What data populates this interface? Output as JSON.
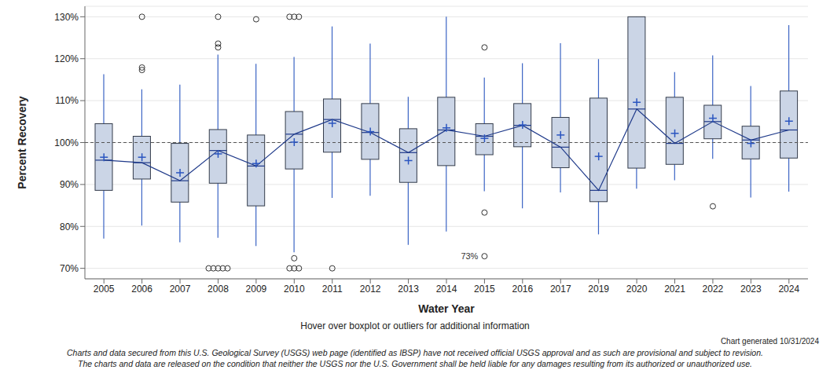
{
  "chart_data": {
    "type": "boxplot",
    "y_label": "Percent Recovery",
    "x_label": "Water Year",
    "note": "Hover over boxplot or outliers for additional information",
    "generated": "Chart generated 10/31/2024",
    "disclaimer": [
      "Charts and data secured from this U.S. Geological Survey (USGS) web page (identified as IBSP) have not received official USGS approval and as such are provisional and subject to revision.",
      "The charts and data are released on the condition that neither the USGS nor the U.S. Government shall be held liable for any damages resulting from its authorized or unauthorized use."
    ],
    "categories": [
      "2005",
      "2006",
      "2007",
      "2008",
      "2009",
      "2010",
      "2011",
      "2012",
      "2013",
      "2014",
      "2015",
      "2016",
      "2017",
      "2019",
      "2020",
      "2021",
      "2022",
      "2023",
      "2024"
    ],
    "whisker_low": [
      77.1,
      80.2,
      76.2,
      77.3,
      75.3,
      73.8,
      86.8,
      87.3,
      75.6,
      78.8,
      88.4,
      84.3,
      88.1,
      78.1,
      89,
      91,
      96.1,
      86.9,
      88.3
    ],
    "q1": [
      88.6,
      91.3,
      85.8,
      90.3,
      84.9,
      93.7,
      97.7,
      96,
      90.5,
      94.5,
      97.1,
      99,
      94,
      85.9,
      93.9,
      94.8,
      100.9,
      96.1,
      96.3
    ],
    "median": [
      95.8,
      95.2,
      90.9,
      98.1,
      94.4,
      102,
      105.5,
      102.4,
      97.6,
      103,
      101.5,
      104.1,
      98.9,
      88.6,
      108,
      99.8,
      105,
      100.6,
      103
    ],
    "q3": [
      104.5,
      101.5,
      99.8,
      103.1,
      101.8,
      107.4,
      110.4,
      109.3,
      103.3,
      110.8,
      104.5,
      109.3,
      106,
      110.6,
      130,
      110.8,
      108.9,
      103.9,
      112.3
    ],
    "whisker_high": [
      116.3,
      112.7,
      113.8,
      121,
      118.8,
      120.4,
      127.7,
      123.6,
      110.9,
      130,
      115.5,
      118.9,
      123.7,
      119.9,
      130,
      116.8,
      120.8,
      113.5,
      128
    ],
    "mean": [
      96.5,
      96.5,
      92.8,
      97.3,
      95,
      100.1,
      104.6,
      102.6,
      95.7,
      103.5,
      101,
      104.2,
      101.8,
      96.7,
      109.6,
      102.2,
      105.8,
      99.8,
      105.1
    ],
    "outliers": [
      [],
      [
        130,
        117.9,
        117.3
      ],
      [],
      [
        130,
        123.6,
        122.7,
        70,
        70,
        70,
        70,
        70
      ],
      [
        129.4
      ],
      [
        130,
        130,
        130,
        72.4,
        70,
        70,
        70
      ],
      [
        70
      ],
      [],
      [],
      [],
      [
        122.7,
        83.3,
        72.9
      ],
      [],
      [],
      [],
      [],
      [],
      [
        84.8
      ],
      [],
      []
    ],
    "annotation": {
      "text": "73%",
      "category": "2015",
      "value": 72.9
    },
    "reference_line": 100,
    "ylim": [
      67.5,
      132.5
    ],
    "yticks": [
      {
        "value": 70,
        "label": "70%"
      },
      {
        "value": 80,
        "label": "80%"
      },
      {
        "value": 90,
        "label": "90%"
      },
      {
        "value": 100,
        "label": "100%"
      },
      {
        "value": 110,
        "label": "110%"
      },
      {
        "value": 120,
        "label": "120%"
      },
      {
        "value": 130,
        "label": "130%"
      }
    ],
    "grid": true
  }
}
